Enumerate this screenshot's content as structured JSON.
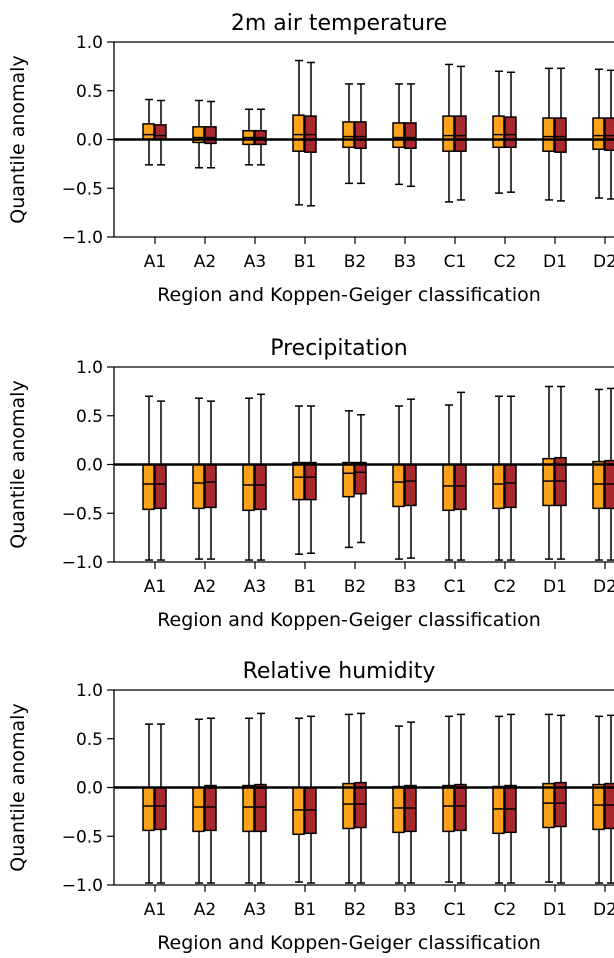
{
  "colors": {
    "series_a": "#fca21b",
    "series_b": "#a8292d",
    "stroke": "#000000"
  },
  "chart_data": [
    {
      "type": "box",
      "title": "2m air temperature",
      "xlabel": "Region and Koppen-Geiger classification",
      "ylabel": "Quantile anomaly",
      "ylim": [
        -1.0,
        1.0
      ],
      "yticks": [
        1.0,
        0.5,
        0.0,
        -0.5,
        -1.0
      ],
      "ytick_labels": [
        "1.0",
        "0.5",
        "0.0",
        "−0.5",
        "−1.0"
      ],
      "categories": [
        "A1",
        "A2",
        "A3",
        "B1",
        "B2",
        "B3",
        "C1",
        "C2",
        "D1",
        "D2"
      ],
      "reference_line": 0.0,
      "series": [
        {
          "boxes": [
            {
              "whislo": -0.26,
              "q1": 0.0,
              "med": 0.05,
              "q3": 0.16,
              "whishi": 0.41
            },
            {
              "whislo": -0.29,
              "q1": -0.03,
              "med": 0.02,
              "q3": 0.13,
              "whishi": 0.4
            },
            {
              "whislo": -0.26,
              "q1": -0.05,
              "med": 0.02,
              "q3": 0.09,
              "whishi": 0.31
            },
            {
              "whislo": -0.67,
              "q1": -0.12,
              "med": 0.05,
              "q3": 0.25,
              "whishi": 0.81
            },
            {
              "whislo": -0.45,
              "q1": -0.08,
              "med": 0.03,
              "q3": 0.18,
              "whishi": 0.57
            },
            {
              "whislo": -0.46,
              "q1": -0.08,
              "med": 0.02,
              "q3": 0.17,
              "whishi": 0.57
            },
            {
              "whislo": -0.64,
              "q1": -0.12,
              "med": 0.04,
              "q3": 0.24,
              "whishi": 0.77
            },
            {
              "whislo": -0.55,
              "q1": -0.08,
              "med": 0.05,
              "q3": 0.24,
              "whishi": 0.7
            },
            {
              "whislo": -0.62,
              "q1": -0.12,
              "med": 0.03,
              "q3": 0.22,
              "whishi": 0.73
            },
            {
              "whislo": -0.6,
              "q1": -0.1,
              "med": 0.04,
              "q3": 0.22,
              "whishi": 0.72
            }
          ]
        },
        {
          "boxes": [
            {
              "whislo": -0.26,
              "q1": 0.0,
              "med": 0.04,
              "q3": 0.15,
              "whishi": 0.4
            },
            {
              "whislo": -0.29,
              "q1": -0.04,
              "med": 0.02,
              "q3": 0.13,
              "whishi": 0.39
            },
            {
              "whislo": -0.26,
              "q1": -0.05,
              "med": 0.02,
              "q3": 0.09,
              "whishi": 0.31
            },
            {
              "whislo": -0.68,
              "q1": -0.13,
              "med": 0.05,
              "q3": 0.24,
              "whishi": 0.79
            },
            {
              "whislo": -0.45,
              "q1": -0.09,
              "med": 0.03,
              "q3": 0.18,
              "whishi": 0.57
            },
            {
              "whislo": -0.48,
              "q1": -0.09,
              "med": 0.02,
              "q3": 0.17,
              "whishi": 0.57
            },
            {
              "whislo": -0.62,
              "q1": -0.12,
              "med": 0.04,
              "q3": 0.24,
              "whishi": 0.75
            },
            {
              "whislo": -0.54,
              "q1": -0.08,
              "med": 0.05,
              "q3": 0.23,
              "whishi": 0.69
            },
            {
              "whislo": -0.63,
              "q1": -0.13,
              "med": 0.03,
              "q3": 0.22,
              "whishi": 0.73
            },
            {
              "whislo": -0.61,
              "q1": -0.11,
              "med": 0.04,
              "q3": 0.22,
              "whishi": 0.71
            }
          ]
        }
      ]
    },
    {
      "type": "box",
      "title": "Precipitation",
      "xlabel": "Region and Koppen-Geiger classification",
      "ylabel": "Quantile anomaly",
      "ylim": [
        -1.0,
        1.0
      ],
      "yticks": [
        1.0,
        0.5,
        0.0,
        -0.5,
        -1.0
      ],
      "ytick_labels": [
        "1.0",
        "0.5",
        "0.0",
        "−0.5",
        "−1.0"
      ],
      "categories": [
        "A1",
        "A2",
        "A3",
        "B1",
        "B2",
        "B3",
        "C1",
        "C2",
        "D1",
        "D2"
      ],
      "reference_line": 0.0,
      "series": [
        {
          "boxes": [
            {
              "whislo": -0.98,
              "q1": -0.46,
              "med": -0.2,
              "q3": 0.0,
              "whishi": 0.7
            },
            {
              "whislo": -0.97,
              "q1": -0.45,
              "med": -0.19,
              "q3": 0.0,
              "whishi": 0.68
            },
            {
              "whislo": -0.98,
              "q1": -0.47,
              "med": -0.21,
              "q3": 0.0,
              "whishi": 0.68
            },
            {
              "whislo": -0.92,
              "q1": -0.36,
              "med": -0.13,
              "q3": 0.02,
              "whishi": 0.6
            },
            {
              "whislo": -0.85,
              "q1": -0.33,
              "med": -0.09,
              "q3": 0.02,
              "whishi": 0.55
            },
            {
              "whislo": -0.97,
              "q1": -0.43,
              "med": -0.18,
              "q3": 0.0,
              "whishi": 0.6
            },
            {
              "whislo": -0.98,
              "q1": -0.47,
              "med": -0.22,
              "q3": 0.0,
              "whishi": 0.61
            },
            {
              "whislo": -0.98,
              "q1": -0.45,
              "med": -0.2,
              "q3": 0.0,
              "whishi": 0.7
            },
            {
              "whislo": -0.97,
              "q1": -0.42,
              "med": -0.17,
              "q3": 0.06,
              "whishi": 0.8
            },
            {
              "whislo": -0.98,
              "q1": -0.45,
              "med": -0.2,
              "q3": 0.03,
              "whishi": 0.77
            }
          ]
        },
        {
          "boxes": [
            {
              "whislo": -0.98,
              "q1": -0.45,
              "med": -0.2,
              "q3": 0.0,
              "whishi": 0.65
            },
            {
              "whislo": -0.97,
              "q1": -0.44,
              "med": -0.18,
              "q3": 0.0,
              "whishi": 0.65
            },
            {
              "whislo": -0.98,
              "q1": -0.46,
              "med": -0.21,
              "q3": 0.0,
              "whishi": 0.72
            },
            {
              "whislo": -0.91,
              "q1": -0.36,
              "med": -0.13,
              "q3": 0.02,
              "whishi": 0.6
            },
            {
              "whislo": -0.8,
              "q1": -0.3,
              "med": -0.08,
              "q3": 0.02,
              "whishi": 0.51
            },
            {
              "whislo": -0.96,
              "q1": -0.42,
              "med": -0.17,
              "q3": 0.0,
              "whishi": 0.67
            },
            {
              "whislo": -0.98,
              "q1": -0.46,
              "med": -0.22,
              "q3": 0.0,
              "whishi": 0.74
            },
            {
              "whislo": -0.98,
              "q1": -0.44,
              "med": -0.19,
              "q3": 0.0,
              "whishi": 0.7
            },
            {
              "whislo": -0.97,
              "q1": -0.42,
              "med": -0.17,
              "q3": 0.07,
              "whishi": 0.8
            },
            {
              "whislo": -0.98,
              "q1": -0.45,
              "med": -0.2,
              "q3": 0.04,
              "whishi": 0.78
            }
          ]
        }
      ]
    },
    {
      "type": "box",
      "title": "Relative humidity",
      "xlabel": "Region and Koppen-Geiger classification",
      "ylabel": "Quantile anomaly",
      "ylim": [
        -1.0,
        1.0
      ],
      "yticks": [
        1.0,
        0.5,
        0.0,
        -0.5,
        -1.0
      ],
      "ytick_labels": [
        "1.0",
        "0.5",
        "0.0",
        "−0.5",
        "−1.0"
      ],
      "categories": [
        "A1",
        "A2",
        "A3",
        "B1",
        "B2",
        "B3",
        "C1",
        "C2",
        "D1",
        "D2"
      ],
      "reference_line": 0.0,
      "series": [
        {
          "boxes": [
            {
              "whislo": -0.98,
              "q1": -0.44,
              "med": -0.19,
              "q3": 0.0,
              "whishi": 0.65
            },
            {
              "whislo": -0.98,
              "q1": -0.45,
              "med": -0.2,
              "q3": 0.0,
              "whishi": 0.7
            },
            {
              "whislo": -0.98,
              "q1": -0.45,
              "med": -0.2,
              "q3": 0.02,
              "whishi": 0.71
            },
            {
              "whislo": -0.97,
              "q1": -0.48,
              "med": -0.23,
              "q3": 0.0,
              "whishi": 0.71
            },
            {
              "whislo": -0.98,
              "q1": -0.42,
              "med": -0.17,
              "q3": 0.04,
              "whishi": 0.75
            },
            {
              "whislo": -0.98,
              "q1": -0.46,
              "med": -0.21,
              "q3": 0.01,
              "whishi": 0.63
            },
            {
              "whislo": -0.97,
              "q1": -0.45,
              "med": -0.19,
              "q3": 0.02,
              "whishi": 0.73
            },
            {
              "whislo": -0.98,
              "q1": -0.47,
              "med": -0.22,
              "q3": 0.01,
              "whishi": 0.73
            },
            {
              "whislo": -0.97,
              "q1": -0.41,
              "med": -0.16,
              "q3": 0.04,
              "whishi": 0.75
            },
            {
              "whislo": -0.98,
              "q1": -0.43,
              "med": -0.18,
              "q3": 0.03,
              "whishi": 0.73
            }
          ]
        },
        {
          "boxes": [
            {
              "whislo": -0.98,
              "q1": -0.43,
              "med": -0.19,
              "q3": 0.0,
              "whishi": 0.65
            },
            {
              "whislo": -0.98,
              "q1": -0.44,
              "med": -0.2,
              "q3": 0.02,
              "whishi": 0.71
            },
            {
              "whislo": -0.98,
              "q1": -0.45,
              "med": -0.2,
              "q3": 0.03,
              "whishi": 0.76
            },
            {
              "whislo": -0.98,
              "q1": -0.47,
              "med": -0.23,
              "q3": 0.0,
              "whishi": 0.73
            },
            {
              "whislo": -0.98,
              "q1": -0.41,
              "med": -0.17,
              "q3": 0.05,
              "whishi": 0.76
            },
            {
              "whislo": -0.98,
              "q1": -0.45,
              "med": -0.21,
              "q3": 0.02,
              "whishi": 0.67
            },
            {
              "whislo": -0.98,
              "q1": -0.44,
              "med": -0.19,
              "q3": 0.03,
              "whishi": 0.75
            },
            {
              "whislo": -0.98,
              "q1": -0.46,
              "med": -0.22,
              "q3": 0.02,
              "whishi": 0.75
            },
            {
              "whislo": -0.98,
              "q1": -0.4,
              "med": -0.16,
              "q3": 0.05,
              "whishi": 0.74
            },
            {
              "whislo": -0.98,
              "q1": -0.42,
              "med": -0.18,
              "q3": 0.04,
              "whishi": 0.74
            }
          ]
        }
      ]
    }
  ]
}
